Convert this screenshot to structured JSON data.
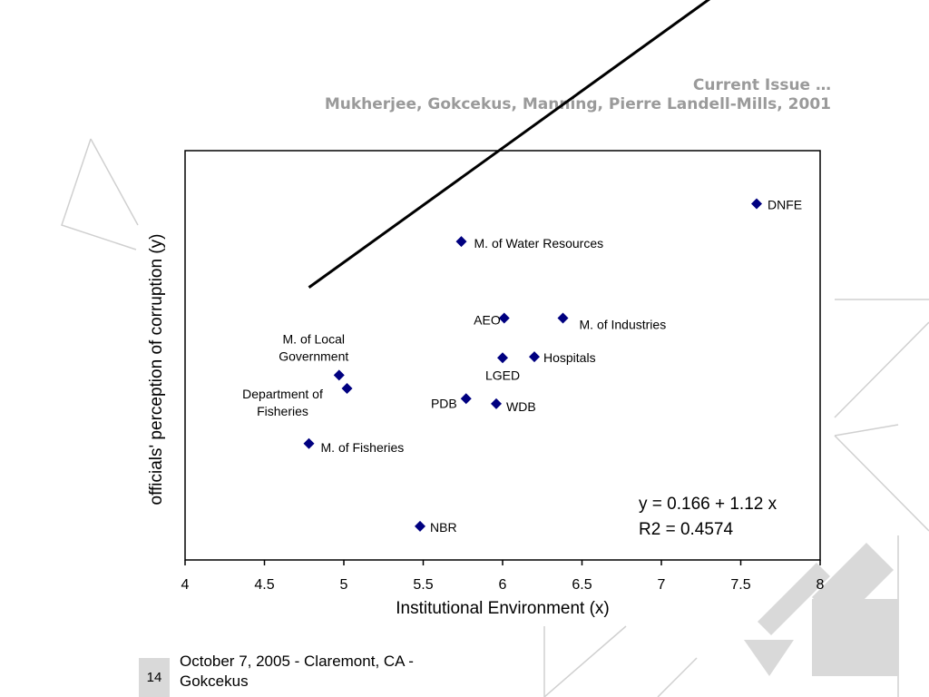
{
  "header": {
    "title": "Current Issue …",
    "authors": "Mukherjee, Gokcekus, Manning, Pierre Landell-Mills, 2001"
  },
  "footer": {
    "slide_number": "14",
    "text": "October 7, 2005 - Claremont, CA - Gokcekus"
  },
  "chart_data": {
    "type": "scatter",
    "xlabel": "Institutional Environment (x)",
    "ylabel": "officials' perception of corruption (y)",
    "xlim": [
      4,
      8
    ],
    "xticks": [
      "4",
      "4.5",
      "5",
      "5.5",
      "6",
      "6.5",
      "7",
      "7.5",
      "8"
    ],
    "y_tick_labels_shown": false,
    "grid": false,
    "marker_color": "#000080",
    "points": [
      {
        "label": "DNFE",
        "x": 7.6,
        "y": 6.34
      },
      {
        "label": "M. of Water Resources",
        "x": 5.74,
        "y": 5.97
      },
      {
        "label": "AEO",
        "x": 6.01,
        "y": 5.22
      },
      {
        "label": "M. of Industries",
        "x": 6.38,
        "y": 5.22
      },
      {
        "label": "Hospitals",
        "x": 6.2,
        "y": 4.84
      },
      {
        "label": "LGED",
        "x": 6.0,
        "y": 4.83
      },
      {
        "label": "M. of Local Government",
        "x": 4.97,
        "y": 4.66
      },
      {
        "label": "Department of Fisheries",
        "x": 5.02,
        "y": 4.53
      },
      {
        "label": "PDB",
        "x": 5.77,
        "y": 4.43
      },
      {
        "label": "WDB",
        "x": 5.96,
        "y": 4.38
      },
      {
        "label": "M. of Fisheries",
        "x": 4.78,
        "y": 3.99
      },
      {
        "label": "NBR",
        "x": 5.48,
        "y": 3.18
      }
    ],
    "fit_line": {
      "intercept": 0.166,
      "slope": 1.12,
      "x_range": [
        4.78,
        7.6
      ]
    },
    "annotation": {
      "equation": "y = 0.166 + 1.12 x",
      "r2": "R2 = 0.4574"
    },
    "ylim": [
      2.85,
      6.86
    ]
  }
}
